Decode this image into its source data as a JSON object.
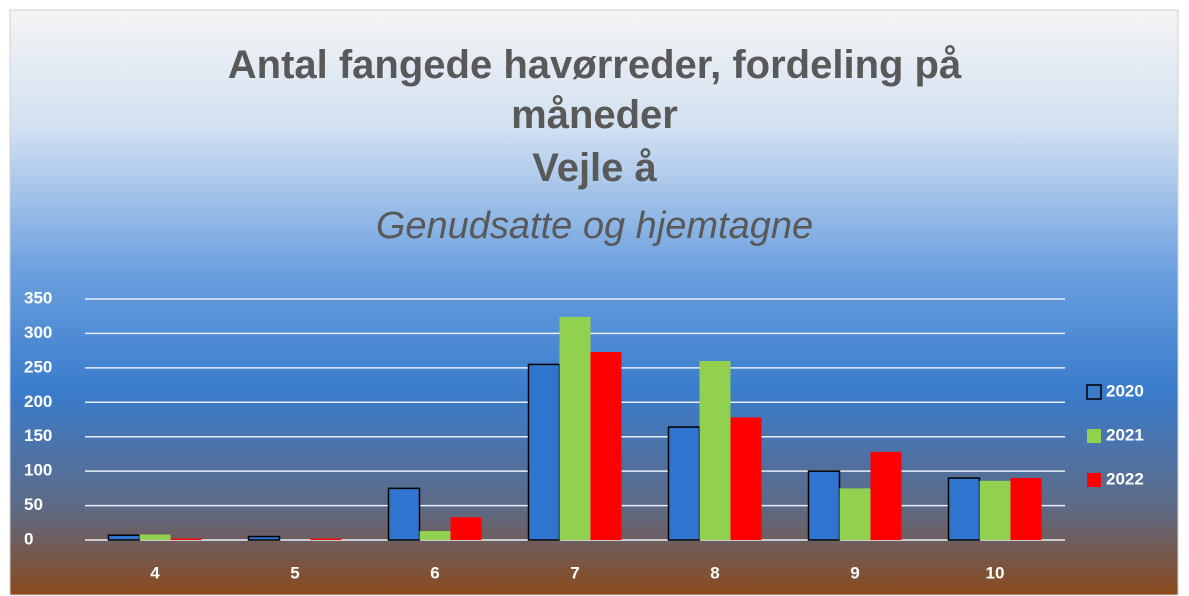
{
  "chart_data": {
    "type": "bar",
    "title": "Antal fangede havørreder, fordeling på måneder",
    "subtitle": "Vejle å",
    "subtitle2": "Genudsatte og hjemtagne",
    "categories": [
      "4",
      "5",
      "6",
      "7",
      "8",
      "9",
      "10"
    ],
    "series": [
      {
        "name": "2020",
        "color": "#2f75d0",
        "values": [
          7,
          5,
          75,
          255,
          164,
          100,
          90
        ]
      },
      {
        "name": "2021",
        "color": "#92d050",
        "values": [
          8,
          0,
          13,
          324,
          260,
          75,
          86
        ]
      },
      {
        "name": "2022",
        "color": "#ff0000",
        "values": [
          2,
          2,
          33,
          273,
          178,
          128,
          90
        ]
      }
    ],
    "ylim": [
      0,
      350
    ],
    "yticks": [
      0,
      50,
      100,
      150,
      200,
      250,
      300,
      350
    ],
    "grid": true,
    "legend": "right"
  }
}
